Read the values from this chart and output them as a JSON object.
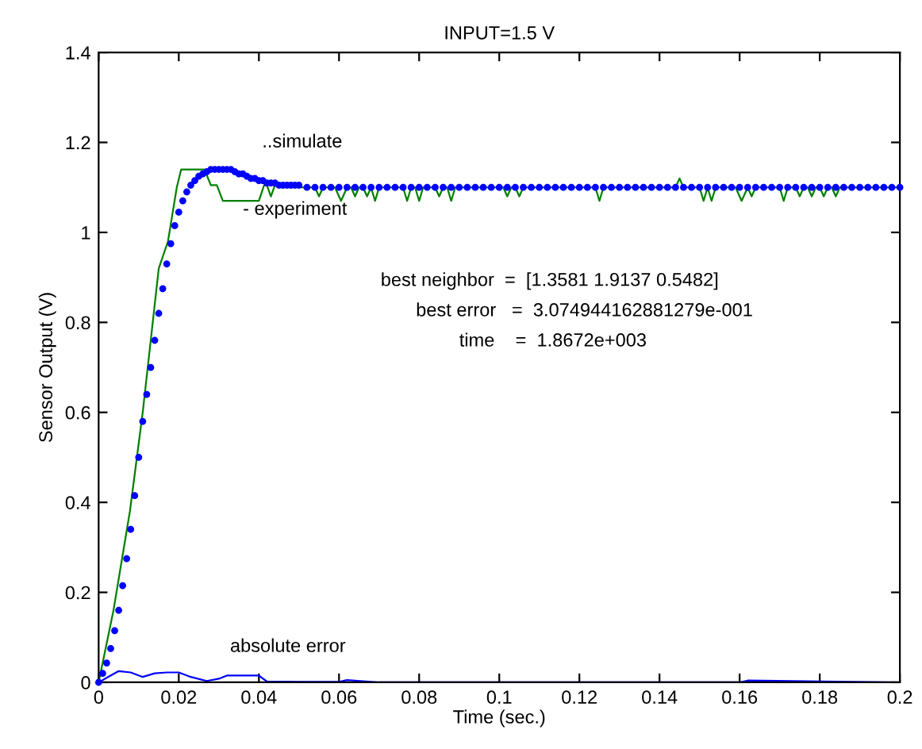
{
  "chart_data": {
    "type": "line",
    "title": "INPUT=1.5 V",
    "xlabel": "Time (sec.)",
    "ylabel": "Sensor Output (V)",
    "xlim": [
      0,
      0.2
    ],
    "ylim": [
      0,
      1.4
    ],
    "xticks": [
      0,
      0.02,
      0.04,
      0.06,
      0.08,
      0.1,
      0.12,
      0.14,
      0.16,
      0.18,
      0.2
    ],
    "yticks": [
      0,
      0.2,
      0.4,
      0.6,
      0.8,
      1,
      1.2,
      1.4
    ],
    "grid": false,
    "legend": false,
    "series": [
      {
        "color": "#008000",
        "line_style": "solid",
        "marker": "none",
        "x": [
          0,
          0.0037,
          0.0078,
          0.011,
          0.015,
          0.0173,
          0.0195,
          0.0206,
          0.0264,
          0.028,
          0.0295,
          0.031,
          0.04,
          0.0413,
          0.042,
          0.043,
          0.044,
          0.045,
          0.05,
          0.054,
          0.055,
          0.056,
          0.059,
          0.0605,
          0.062,
          0.063,
          0.064,
          0.065,
          0.066,
          0.067,
          0.068,
          0.069,
          0.07,
          0.076,
          0.077,
          0.078,
          0.079,
          0.08,
          0.081,
          0.084,
          0.085,
          0.086,
          0.087,
          0.088,
          0.089,
          0.101,
          0.102,
          0.103,
          0.104,
          0.105,
          0.106,
          0.124,
          0.125,
          0.126,
          0.144,
          0.145,
          0.146,
          0.15,
          0.151,
          0.152,
          0.153,
          0.154,
          0.159,
          0.1605,
          0.162,
          0.163,
          0.164,
          0.17,
          0.171,
          0.172,
          0.174,
          0.175,
          0.176,
          0.177,
          0.178,
          0.179,
          0.18,
          0.181,
          0.182,
          0.183,
          0.184,
          0.185,
          0.2
        ],
        "values": [
          0,
          0.16,
          0.38,
          0.6,
          0.92,
          0.98,
          1.1,
          1.14,
          1.14,
          1.105,
          1.105,
          1.07,
          1.07,
          1.105,
          1.105,
          1.08,
          1.105,
          1.1,
          1.1,
          1.1,
          1.08,
          1.1,
          1.1,
          1.07,
          1.1,
          1.1,
          1.08,
          1.1,
          1.1,
          1.08,
          1.1,
          1.07,
          1.1,
          1.1,
          1.07,
          1.1,
          1.1,
          1.07,
          1.1,
          1.1,
          1.08,
          1.1,
          1.1,
          1.07,
          1.1,
          1.1,
          1.08,
          1.1,
          1.1,
          1.08,
          1.1,
          1.1,
          1.07,
          1.1,
          1.1,
          1.12,
          1.1,
          1.1,
          1.07,
          1.1,
          1.07,
          1.1,
          1.1,
          1.07,
          1.1,
          1.08,
          1.1,
          1.1,
          1.07,
          1.1,
          1.1,
          1.08,
          1.1,
          1.1,
          1.08,
          1.1,
          1.1,
          1.08,
          1.1,
          1.1,
          1.08,
          1.1,
          1.1
        ]
      },
      {
        "type": "scatter",
        "color": "#0000ff",
        "marker": "circle",
        "x": [
          0,
          0.001,
          0.002,
          0.003,
          0.004,
          0.005,
          0.006,
          0.007,
          0.008,
          0.009,
          0.01,
          0.011,
          0.012,
          0.013,
          0.014,
          0.015,
          0.016,
          0.017,
          0.018,
          0.019,
          0.02,
          0.021,
          0.022,
          0.023,
          0.024,
          0.025,
          0.026,
          0.027,
          0.028,
          0.029,
          0.03,
          0.031,
          0.032,
          0.033,
          0.034,
          0.035,
          0.036,
          0.037,
          0.038,
          0.039,
          0.04,
          0.041,
          0.042,
          0.043,
          0.044,
          0.045,
          0.046,
          0.047,
          0.048,
          0.049,
          0.05,
          0.052,
          0.054,
          0.056,
          0.058,
          0.06,
          0.062,
          0.064,
          0.066,
          0.068,
          0.07,
          0.072,
          0.074,
          0.076,
          0.078,
          0.08,
          0.082,
          0.084,
          0.086,
          0.088,
          0.09,
          0.092,
          0.094,
          0.096,
          0.098,
          0.1,
          0.102,
          0.104,
          0.106,
          0.108,
          0.11,
          0.112,
          0.114,
          0.116,
          0.118,
          0.12,
          0.122,
          0.124,
          0.126,
          0.128,
          0.13,
          0.132,
          0.134,
          0.136,
          0.138,
          0.14,
          0.142,
          0.144,
          0.146,
          0.148,
          0.15,
          0.152,
          0.154,
          0.156,
          0.158,
          0.16,
          0.162,
          0.164,
          0.166,
          0.168,
          0.17,
          0.172,
          0.174,
          0.176,
          0.178,
          0.18,
          0.182,
          0.184,
          0.186,
          0.188,
          0.19,
          0.192,
          0.194,
          0.196,
          0.198,
          0.2
        ],
        "values": [
          0,
          0.02,
          0.043,
          0.075,
          0.115,
          0.16,
          0.215,
          0.275,
          0.34,
          0.415,
          0.5,
          0.58,
          0.64,
          0.7,
          0.76,
          0.82,
          0.875,
          0.93,
          0.975,
          1.015,
          1.045,
          1.07,
          1.09,
          1.105,
          1.115,
          1.125,
          1.13,
          1.135,
          1.14,
          1.14,
          1.14,
          1.14,
          1.14,
          1.14,
          1.135,
          1.13,
          1.13,
          1.125,
          1.12,
          1.12,
          1.115,
          1.115,
          1.11,
          1.11,
          1.11,
          1.105,
          1.105,
          1.105,
          1.105,
          1.105,
          1.105,
          1.1,
          1.1,
          1.1,
          1.1,
          1.1,
          1.1,
          1.1,
          1.1,
          1.1,
          1.1,
          1.1,
          1.1,
          1.1,
          1.1,
          1.1,
          1.1,
          1.1,
          1.1,
          1.1,
          1.1,
          1.1,
          1.1,
          1.1,
          1.1,
          1.1,
          1.1,
          1.1,
          1.1,
          1.1,
          1.1,
          1.1,
          1.1,
          1.1,
          1.1,
          1.1,
          1.1,
          1.1,
          1.1,
          1.1,
          1.1,
          1.1,
          1.1,
          1.1,
          1.1,
          1.1,
          1.1,
          1.1,
          1.1,
          1.1,
          1.1,
          1.1,
          1.1,
          1.1,
          1.1,
          1.1,
          1.1,
          1.1,
          1.1,
          1.1,
          1.1,
          1.1,
          1.1,
          1.1,
          1.1,
          1.1,
          1.1,
          1.1,
          1.1,
          1.1,
          1.1,
          1.1,
          1.1,
          1.1,
          1.1,
          1.1
        ]
      },
      {
        "color": "#0000ff",
        "line_style": "solid",
        "marker": "none",
        "x": [
          0,
          0.002,
          0.005,
          0.008,
          0.011,
          0.014,
          0.017,
          0.02,
          0.023,
          0.027,
          0.03,
          0.032,
          0.04,
          0.042,
          0.05,
          0.06,
          0.062,
          0.07,
          0.16,
          0.162,
          0.2
        ],
        "values": [
          0,
          0.01,
          0.025,
          0.022,
          0.012,
          0.02,
          0.022,
          0.022,
          0.012,
          0.003,
          0.008,
          0.015,
          0.015,
          0.002,
          0.001,
          0.001,
          0.005,
          0,
          0,
          0.004,
          0
        ]
      }
    ],
    "annotations": [
      "..simulate",
      "- experiment",
      "absolute error",
      "best neighbor  =  [1.3581 1.9137 0.5482]",
      "best error   =  3.074944162881279e-001",
      "time    =  1.8672e+003"
    ]
  }
}
